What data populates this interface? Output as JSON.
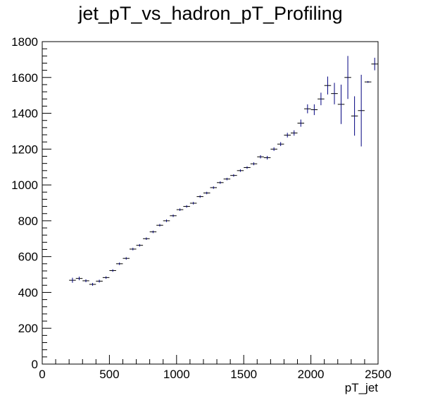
{
  "chart_data": {
    "type": "scatter",
    "title": "jet_pT_vs_hadron_pT_Profiling",
    "xlabel": "pT_jet",
    "ylabel": "",
    "xlim": [
      0,
      2500
    ],
    "ylim": [
      0,
      1800
    ],
    "x_ticks": [
      "0",
      "500",
      "1000",
      "1500",
      "2000",
      "2500"
    ],
    "y_ticks": [
      "0",
      "200",
      "400",
      "600",
      "800",
      "1000",
      "1200",
      "1400",
      "1600",
      "1800"
    ],
    "grid": false,
    "bin_width": 50,
    "marker_color": "#00007f",
    "series": [
      {
        "x": [
          225,
          275,
          325,
          375,
          425,
          475,
          525,
          575,
          625,
          675,
          725,
          775,
          825,
          875,
          925,
          975,
          1025,
          1075,
          1125,
          1175,
          1225,
          1275,
          1325,
          1375,
          1425,
          1475,
          1525,
          1575,
          1625,
          1675,
          1725,
          1775,
          1825,
          1875,
          1925,
          1975,
          2025,
          2075,
          2125,
          2175,
          2225,
          2275,
          2325,
          2375,
          2425,
          2475
        ],
        "y": [
          468,
          478,
          465,
          445,
          463,
          483,
          522,
          560,
          590,
          642,
          663,
          700,
          738,
          775,
          800,
          828,
          862,
          880,
          898,
          935,
          955,
          985,
          1013,
          1033,
          1053,
          1080,
          1097,
          1118,
          1157,
          1152,
          1200,
          1228,
          1278,
          1290,
          1345,
          1425,
          1420,
          1480,
          1555,
          1510,
          1450,
          1600,
          1385,
          1415,
          1575,
          1675
        ],
        "err": [
          14,
          10,
          8,
          8,
          8,
          7,
          7,
          7,
          7,
          7,
          7,
          7,
          7,
          7,
          7,
          7,
          7,
          7,
          7,
          7,
          7,
          7,
          7,
          7,
          7,
          7,
          7,
          8,
          9,
          10,
          10,
          11,
          13,
          15,
          20,
          25,
          30,
          35,
          50,
          60,
          110,
          120,
          110,
          200,
          5,
          35
        ]
      }
    ]
  }
}
